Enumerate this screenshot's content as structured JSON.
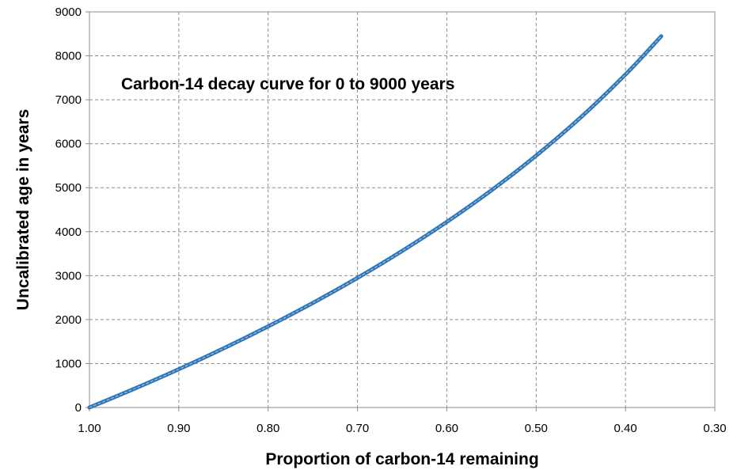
{
  "chart_data": {
    "type": "line",
    "title": "Carbon-14 decay curve for 0 to 9000 years",
    "xlabel": "Proportion of carbon-14 remaining",
    "ylabel": "Uncalibrated age in years",
    "xlim": [
      1.0,
      0.3
    ],
    "ylim": [
      0,
      9000
    ],
    "x_reversed": true,
    "x_ticks": [
      "1.00",
      "0.90",
      "0.80",
      "0.70",
      "0.60",
      "0.50",
      "0.40",
      "0.30"
    ],
    "y_ticks": [
      "0",
      "1000",
      "2000",
      "3000",
      "4000",
      "5000",
      "6000",
      "7000",
      "8000",
      "9000"
    ],
    "grid": true,
    "legend": "none",
    "series": [
      {
        "color": "#2e75b6",
        "x": [
          1.0,
          0.95,
          0.9,
          0.85,
          0.8,
          0.75,
          0.7,
          0.65,
          0.6,
          0.55,
          0.5,
          0.45,
          0.4,
          0.36
        ],
        "y": [
          0,
          424,
          871,
          1343,
          1845,
          2378,
          2948,
          3561,
          4222,
          4941,
          5730,
          6601,
          7575,
          8446
        ]
      }
    ]
  }
}
